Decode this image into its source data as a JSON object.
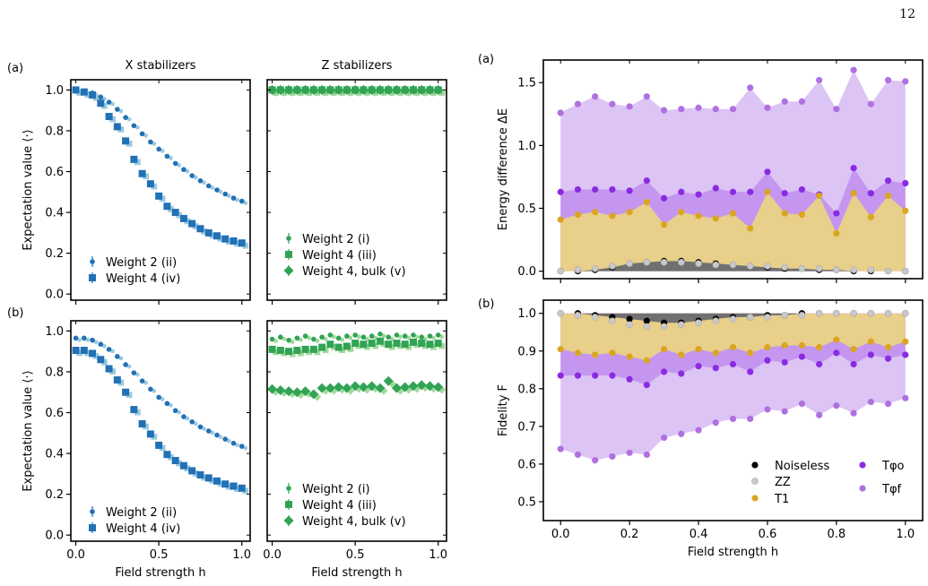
{
  "page_number": "12",
  "colors": {
    "blue_dark": "#2171b5",
    "blue_light": "#9ecae1",
    "green_dark": "#31a354",
    "green_light": "#a1d99b",
    "noiseless": "#000000",
    "zz": "#c8c8c8",
    "t1": "#daa520",
    "tphi_o": "#8a2be2",
    "tphi_f": "#b070e0",
    "band_gray": "#707070",
    "band_t1": "#e8cf8a",
    "band_tphi_o": "#c596f0",
    "band_tphi_f": "#dcc4f5"
  },
  "chart_data": [
    {
      "id": "left_a_x",
      "type": "scatter",
      "panel_label": "(a)",
      "title": "X stabilizers",
      "xlabel": "",
      "ylabel": "Expectation value ⟨·⟩",
      "xlim": [
        -0.03,
        1.05
      ],
      "ylim": [
        -0.03,
        1.05
      ],
      "xticks": [
        "0.0",
        "0.5",
        "1.0"
      ],
      "yticks": [
        "0.0",
        "0.2",
        "0.4",
        "0.6",
        "0.8",
        "1.0"
      ],
      "x": [
        0,
        0.05,
        0.1,
        0.15,
        0.2,
        0.25,
        0.3,
        0.35,
        0.4,
        0.45,
        0.5,
        0.55,
        0.6,
        0.65,
        0.7,
        0.75,
        0.8,
        0.85,
        0.9,
        0.95,
        1.0
      ],
      "series": [
        {
          "name": "Weight 2 (ii)",
          "marker": "dot",
          "values": [
            1.0,
            0.995,
            0.985,
            0.965,
            0.94,
            0.905,
            0.865,
            0.825,
            0.785,
            0.745,
            0.71,
            0.675,
            0.64,
            0.61,
            0.58,
            0.555,
            0.53,
            0.51,
            0.49,
            0.47,
            0.455
          ]
        },
        {
          "name": "Weight 4 (iv)",
          "marker": "square",
          "values": [
            1.0,
            0.99,
            0.975,
            0.935,
            0.87,
            0.82,
            0.75,
            0.66,
            0.59,
            0.54,
            0.48,
            0.43,
            0.4,
            0.37,
            0.345,
            0.32,
            0.3,
            0.285,
            0.27,
            0.26,
            0.25
          ]
        }
      ],
      "legend": "lower-left"
    },
    {
      "id": "left_a_z",
      "type": "scatter",
      "title": "Z stabilizers",
      "xlim": [
        -0.03,
        1.05
      ],
      "ylim": [
        -0.03,
        1.05
      ],
      "xticks": [
        "0.0",
        "0.5",
        "1.0"
      ],
      "x": [
        0,
        0.05,
        0.1,
        0.15,
        0.2,
        0.25,
        0.3,
        0.35,
        0.4,
        0.45,
        0.5,
        0.55,
        0.6,
        0.65,
        0.7,
        0.75,
        0.8,
        0.85,
        0.9,
        0.95,
        1.0
      ],
      "series": [
        {
          "name": "Weight 2 (i)",
          "marker": "dot",
          "values": [
            1,
            1,
            1,
            1,
            1,
            1,
            1,
            1,
            1,
            1,
            1,
            1,
            1,
            1,
            1,
            1,
            1,
            1,
            1,
            1,
            1
          ]
        },
        {
          "name": "Weight 4 (iii)",
          "marker": "square",
          "values": [
            1,
            1,
            1,
            1,
            1,
            1,
            1,
            1,
            1,
            1,
            1,
            1,
            1,
            1,
            1,
            1,
            1,
            1,
            1,
            1,
            1
          ]
        },
        {
          "name": "Weight 4, bulk (v)",
          "marker": "diamond",
          "values": [
            1,
            1,
            1,
            1,
            1,
            1,
            1,
            1,
            1,
            1,
            1,
            1,
            1,
            1,
            1,
            1,
            1,
            1,
            1,
            1,
            1
          ]
        }
      ],
      "legend": "lower-left"
    },
    {
      "id": "left_b_x",
      "type": "scatter",
      "panel_label": "(b)",
      "xlabel": "Field strength h",
      "ylabel": "Expectation value ⟨·⟩",
      "xlim": [
        -0.03,
        1.05
      ],
      "ylim": [
        -0.03,
        1.05
      ],
      "xticks": [
        "0.0",
        "0.5",
        "1.0"
      ],
      "yticks": [
        "0.0",
        "0.2",
        "0.4",
        "0.6",
        "0.8",
        "1.0"
      ],
      "x": [
        0,
        0.05,
        0.1,
        0.15,
        0.2,
        0.25,
        0.3,
        0.35,
        0.4,
        0.45,
        0.5,
        0.55,
        0.6,
        0.65,
        0.7,
        0.75,
        0.8,
        0.85,
        0.9,
        0.95,
        1.0
      ],
      "series": [
        {
          "name": "Weight 2 (ii)",
          "marker": "dot",
          "values": [
            0.965,
            0.965,
            0.955,
            0.935,
            0.91,
            0.875,
            0.835,
            0.795,
            0.755,
            0.715,
            0.675,
            0.645,
            0.61,
            0.58,
            0.555,
            0.53,
            0.51,
            0.49,
            0.47,
            0.45,
            0.435
          ]
        },
        {
          "name": "Weight 4 (iv)",
          "marker": "square",
          "values": [
            0.905,
            0.905,
            0.89,
            0.86,
            0.815,
            0.76,
            0.7,
            0.615,
            0.545,
            0.495,
            0.44,
            0.395,
            0.365,
            0.34,
            0.315,
            0.295,
            0.28,
            0.265,
            0.25,
            0.24,
            0.23
          ]
        }
      ],
      "legend": "lower-left"
    },
    {
      "id": "left_b_z",
      "type": "scatter",
      "xlabel": "Field strength h",
      "xlim": [
        -0.03,
        1.05
      ],
      "ylim": [
        -0.03,
        1.05
      ],
      "xticks": [
        "0.0",
        "0.5",
        "1.0"
      ],
      "x": [
        0,
        0.05,
        0.1,
        0.15,
        0.2,
        0.25,
        0.3,
        0.35,
        0.4,
        0.45,
        0.5,
        0.55,
        0.6,
        0.65,
        0.7,
        0.75,
        0.8,
        0.85,
        0.9,
        0.95,
        1.0
      ],
      "series": [
        {
          "name": "Weight 2 (i)",
          "marker": "dot",
          "values": [
            0.96,
            0.97,
            0.955,
            0.965,
            0.975,
            0.96,
            0.97,
            0.98,
            0.965,
            0.975,
            0.98,
            0.97,
            0.975,
            0.985,
            0.97,
            0.98,
            0.975,
            0.98,
            0.97,
            0.975,
            0.98
          ]
        },
        {
          "name": "Weight 4 (iii)",
          "marker": "square",
          "values": [
            0.91,
            0.905,
            0.9,
            0.905,
            0.91,
            0.91,
            0.92,
            0.935,
            0.92,
            0.925,
            0.94,
            0.935,
            0.94,
            0.95,
            0.935,
            0.94,
            0.935,
            0.945,
            0.94,
            0.935,
            0.94
          ]
        },
        {
          "name": "Weight 4, bulk (v)",
          "marker": "diamond",
          "values": [
            0.715,
            0.71,
            0.705,
            0.7,
            0.705,
            0.69,
            0.72,
            0.72,
            0.725,
            0.72,
            0.73,
            0.725,
            0.73,
            0.72,
            0.755,
            0.72,
            0.725,
            0.73,
            0.735,
            0.73,
            0.725
          ]
        }
      ],
      "legend": "lower-left"
    },
    {
      "id": "right_a",
      "type": "area",
      "panel_label": "(a)",
      "xlabel": "",
      "ylabel": "Energy difference ΔE",
      "xlim": [
        -0.05,
        1.05
      ],
      "ylim": [
        -0.06,
        1.68
      ],
      "xticks": [
        "0.0",
        "0.2",
        "0.4",
        "0.6",
        "0.8",
        "1.0"
      ],
      "yticks": [
        "0.0",
        "0.5",
        "1.0",
        "1.5"
      ],
      "x": [
        0,
        0.05,
        0.1,
        0.15,
        0.2,
        0.25,
        0.3,
        0.35,
        0.4,
        0.45,
        0.5,
        0.55,
        0.6,
        0.65,
        0.7,
        0.75,
        0.8,
        0.85,
        0.9,
        0.95,
        1.0
      ],
      "series": [
        {
          "name": "Noiseless",
          "values": [
            0.0,
            0.0,
            0.01,
            0.03,
            0.06,
            0.07,
            0.08,
            0.08,
            0.07,
            0.06,
            0.05,
            0.04,
            0.03,
            0.02,
            0.02,
            0.01,
            0.01,
            0.0,
            0.0,
            0.0,
            0.0
          ]
        },
        {
          "name": "ZZ",
          "values": [
            0.0,
            0.01,
            0.02,
            0.04,
            0.06,
            0.07,
            0.07,
            0.07,
            0.06,
            0.05,
            0.05,
            0.04,
            0.04,
            0.03,
            0.02,
            0.02,
            0.01,
            0.01,
            0.01,
            0.0,
            0.0
          ]
        },
        {
          "name": "T1",
          "values": [
            0.41,
            0.45,
            0.47,
            0.44,
            0.47,
            0.55,
            0.37,
            0.47,
            0.44,
            0.42,
            0.46,
            0.34,
            0.63,
            0.46,
            0.45,
            0.6,
            0.3,
            0.62,
            0.43,
            0.6,
            0.48
          ]
        },
        {
          "name": "Tφo",
          "values": [
            0.63,
            0.65,
            0.65,
            0.65,
            0.64,
            0.72,
            0.58,
            0.63,
            0.61,
            0.66,
            0.63,
            0.63,
            0.79,
            0.62,
            0.65,
            0.61,
            0.46,
            0.82,
            0.62,
            0.72,
            0.7
          ]
        },
        {
          "name": "Tφf",
          "values": [
            1.26,
            1.33,
            1.39,
            1.33,
            1.31,
            1.39,
            1.28,
            1.29,
            1.3,
            1.29,
            1.29,
            1.46,
            1.3,
            1.35,
            1.35,
            1.52,
            1.29,
            1.6,
            1.33,
            1.52,
            1.51
          ]
        }
      ]
    },
    {
      "id": "right_b",
      "type": "area",
      "panel_label": "(b)",
      "xlabel": "Field strength h",
      "ylabel": "Fidelity F",
      "xlim": [
        -0.05,
        1.05
      ],
      "ylim": [
        0.45,
        1.035
      ],
      "xticks": [
        "0.0",
        "0.2",
        "0.4",
        "0.6",
        "0.8",
        "1.0"
      ],
      "yticks": [
        "0.5",
        "0.6",
        "0.7",
        "0.8",
        "0.9",
        "1.0"
      ],
      "x": [
        0,
        0.05,
        0.1,
        0.15,
        0.2,
        0.25,
        0.3,
        0.35,
        0.4,
        0.45,
        0.5,
        0.55,
        0.6,
        0.65,
        0.7,
        0.75,
        0.8,
        0.85,
        0.9,
        0.95,
        1.0
      ],
      "series": [
        {
          "name": "Noiseless",
          "values": [
            1.0,
            1.0,
            0.995,
            0.99,
            0.985,
            0.98,
            0.975,
            0.975,
            0.98,
            0.985,
            0.99,
            0.99,
            0.995,
            0.995,
            1.0,
            1.0,
            1.0,
            1.0,
            1.0,
            1.0,
            1.0
          ]
        },
        {
          "name": "ZZ",
          "values": [
            1.0,
            0.995,
            0.99,
            0.98,
            0.97,
            0.965,
            0.965,
            0.97,
            0.975,
            0.98,
            0.985,
            0.99,
            0.99,
            0.995,
            0.995,
            1.0,
            1.0,
            1.0,
            1.0,
            1.0,
            1.0
          ]
        },
        {
          "name": "T1",
          "values": [
            0.905,
            0.895,
            0.89,
            0.895,
            0.885,
            0.875,
            0.905,
            0.89,
            0.905,
            0.895,
            0.91,
            0.895,
            0.91,
            0.915,
            0.915,
            0.91,
            0.93,
            0.905,
            0.925,
            0.91,
            0.925
          ]
        },
        {
          "name": "Tφo",
          "values": [
            0.835,
            0.835,
            0.835,
            0.835,
            0.825,
            0.81,
            0.845,
            0.84,
            0.86,
            0.855,
            0.865,
            0.845,
            0.875,
            0.87,
            0.885,
            0.865,
            0.895,
            0.865,
            0.89,
            0.88,
            0.89
          ]
        },
        {
          "name": "Tφf",
          "values": [
            0.64,
            0.625,
            0.61,
            0.62,
            0.63,
            0.625,
            0.67,
            0.68,
            0.69,
            0.71,
            0.72,
            0.72,
            0.745,
            0.74,
            0.76,
            0.73,
            0.755,
            0.735,
            0.765,
            0.76,
            0.775
          ]
        }
      ],
      "legend": {
        "entries": [
          {
            "label": "Noiseless",
            "key": "noiseless"
          },
          {
            "label": "ZZ",
            "key": "zz"
          },
          {
            "label": "T1",
            "key": "t1"
          },
          {
            "label": "Tφo",
            "key": "tphi_o"
          },
          {
            "label": "Tφf",
            "key": "tphi_f"
          }
        ],
        "placement": "lower-right"
      }
    }
  ]
}
